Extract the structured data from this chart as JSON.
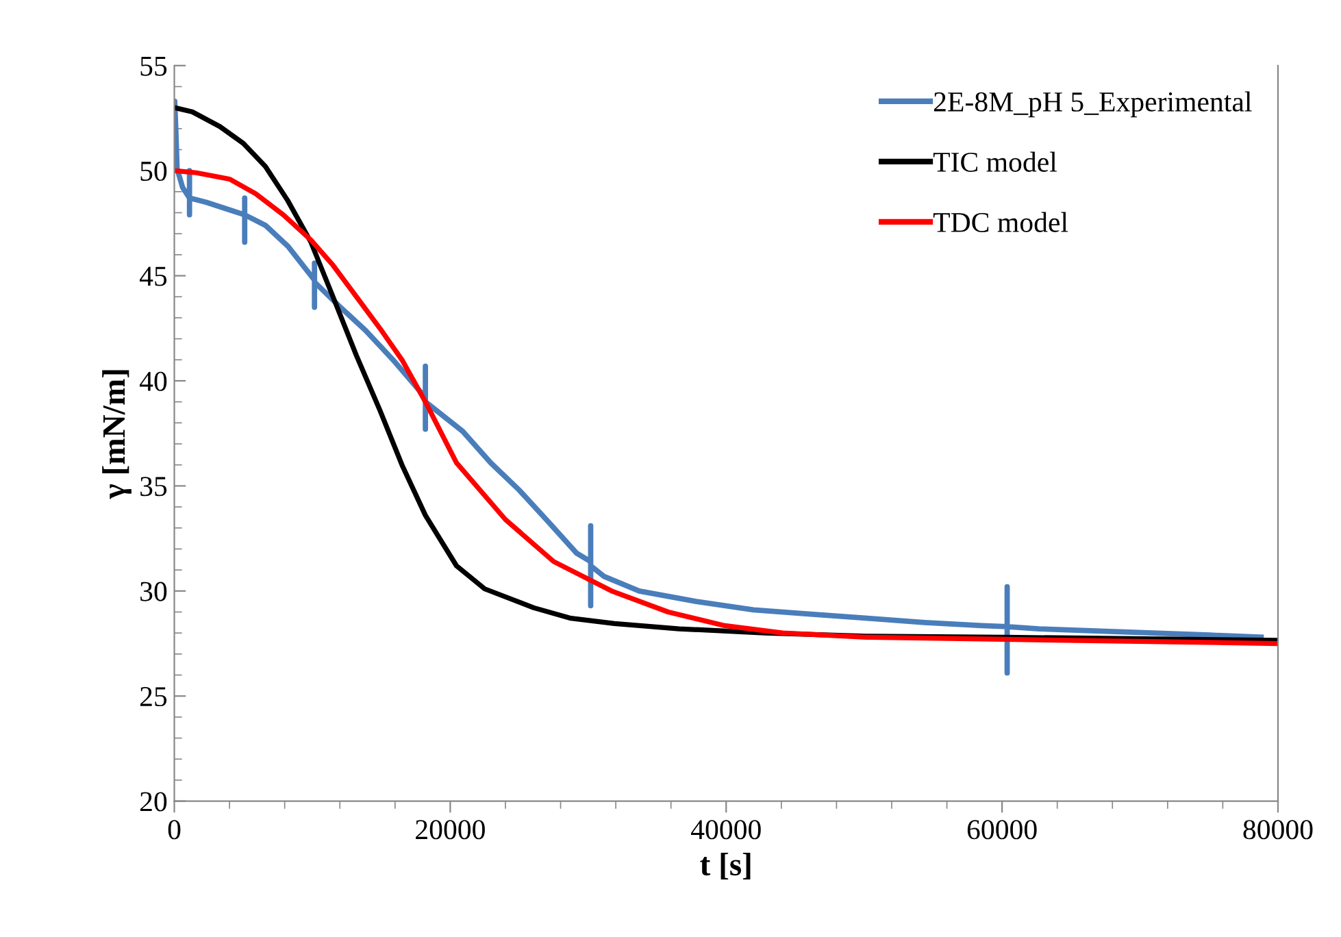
{
  "chart_data": {
    "type": "line",
    "xlabel": "t [s]",
    "ylabel": "γ [mN/m]",
    "xlim": [
      0,
      80000
    ],
    "ylim": [
      20,
      55
    ],
    "xticks": [
      0,
      {
        "value": 4000,
        "label": null
      },
      {
        "value": 8000,
        "label": null
      },
      {
        "value": 12000,
        "label": null
      },
      {
        "value": 16000,
        "label": null
      },
      20000,
      {
        "value": 24000,
        "label": null
      },
      {
        "value": 28000,
        "label": null
      },
      {
        "value": 32000,
        "label": null
      },
      {
        "value": 36000,
        "label": null
      },
      40000,
      {
        "value": 44000,
        "label": null
      },
      {
        "value": 48000,
        "label": null
      },
      {
        "value": 52000,
        "label": null
      },
      {
        "value": 56000,
        "label": null
      },
      60000,
      {
        "value": 64000,
        "label": null
      },
      {
        "value": 68000,
        "label": null
      },
      {
        "value": 72000,
        "label": null
      },
      {
        "value": 76000,
        "label": null
      },
      80000
    ],
    "yticks": [
      20,
      {
        "value": 21,
        "label": null
      },
      {
        "value": 22,
        "label": null
      },
      {
        "value": 23,
        "label": null
      },
      {
        "value": 24,
        "label": null
      },
      25,
      {
        "value": 26,
        "label": null
      },
      {
        "value": 27,
        "label": null
      },
      {
        "value": 28,
        "label": null
      },
      {
        "value": 29,
        "label": null
      },
      30,
      {
        "value": 31,
        "label": null
      },
      {
        "value": 32,
        "label": null
      },
      {
        "value": 33,
        "label": null
      },
      {
        "value": 34,
        "label": null
      },
      35,
      {
        "value": 36,
        "label": null
      },
      {
        "value": 37,
        "label": null
      },
      {
        "value": 38,
        "label": null
      },
      {
        "value": 39,
        "label": null
      },
      40,
      {
        "value": 41,
        "label": null
      },
      {
        "value": 42,
        "label": null
      },
      {
        "value": 43,
        "label": null
      },
      {
        "value": 44,
        "label": null
      },
      45,
      {
        "value": 46,
        "label": null
      },
      {
        "value": 47,
        "label": null
      },
      {
        "value": 48,
        "label": null
      },
      {
        "value": 49,
        "label": null
      },
      50,
      {
        "value": 51,
        "label": null
      },
      {
        "value": 52,
        "label": null
      },
      {
        "value": 53,
        "label": null
      },
      {
        "value": 54,
        "label": null
      },
      55
    ],
    "grid": false,
    "legend": "top right",
    "marker": "none",
    "line_style": "solid",
    "series": [
      {
        "name": "2E-8M_pH 5_Experimental",
        "color": "#4a7ebb",
        "x": [
          0,
          30,
          100,
          200,
          600,
          1100,
          1100,
          1100,
          1100,
          2300,
          3940,
          5100,
          5100,
          5100,
          5100,
          6600,
          8240,
          10030,
          10160,
          10160,
          10160,
          10160,
          11880,
          13860,
          15850,
          18200,
          18200,
          18200,
          18200,
          20900,
          22930,
          25000,
          27100,
          29160,
          30180,
          30180,
          30180,
          30180,
          31130,
          33700,
          37830,
          41980,
          46120,
          50250,
          54390,
          58530,
          60370,
          60370,
          60370,
          60370,
          62670,
          66800,
          70930,
          75060,
          78780
        ],
        "values": [
          52.0,
          53.3,
          52.1,
          50.1,
          49.2,
          48.7,
          50.0,
          47.9,
          48.7,
          48.5,
          48.15,
          47.9,
          48.7,
          46.6,
          47.9,
          47.4,
          46.4,
          44.9,
          44.8,
          45.6,
          43.5,
          44.7,
          43.6,
          42.4,
          41.0,
          39.2,
          40.7,
          37.7,
          39.0,
          37.6,
          36.1,
          34.8,
          33.3,
          31.8,
          31.4,
          33.1,
          29.3,
          31.2,
          30.7,
          30.0,
          29.5,
          29.1,
          28.9,
          28.7,
          28.5,
          28.35,
          28.3,
          30.2,
          26.1,
          28.3,
          28.2,
          28.1,
          28.0,
          27.9,
          27.8
        ]
      },
      {
        "name": "TIC model",
        "color": "#000000",
        "x": [
          0,
          1300,
          3300,
          5000,
          6600,
          8200,
          9900,
          11500,
          13200,
          14900,
          16500,
          18200,
          20450,
          22500,
          26060,
          28750,
          31900,
          36600,
          42800,
          50200,
          60150,
          80000
        ],
        "values": [
          53.0,
          52.8,
          52.1,
          51.3,
          50.2,
          48.6,
          46.6,
          44.0,
          41.2,
          38.6,
          36.0,
          33.6,
          31.2,
          30.1,
          29.2,
          28.7,
          28.45,
          28.2,
          28.0,
          27.85,
          27.8,
          27.65
        ]
      },
      {
        "name": "TDC model",
        "color": "#ff0000",
        "x": [
          0,
          1600,
          4000,
          5900,
          7900,
          9900,
          11500,
          13200,
          14900,
          16500,
          18200,
          20450,
          24000,
          27500,
          31700,
          35800,
          39900,
          44100,
          50200,
          60150,
          80000
        ],
        "values": [
          50.0,
          49.9,
          49.6,
          48.9,
          47.9,
          46.7,
          45.5,
          44.0,
          42.5,
          41.0,
          39.0,
          36.1,
          33.4,
          31.4,
          30.0,
          29.0,
          28.35,
          28.0,
          27.8,
          27.7,
          27.5
        ]
      }
    ]
  }
}
